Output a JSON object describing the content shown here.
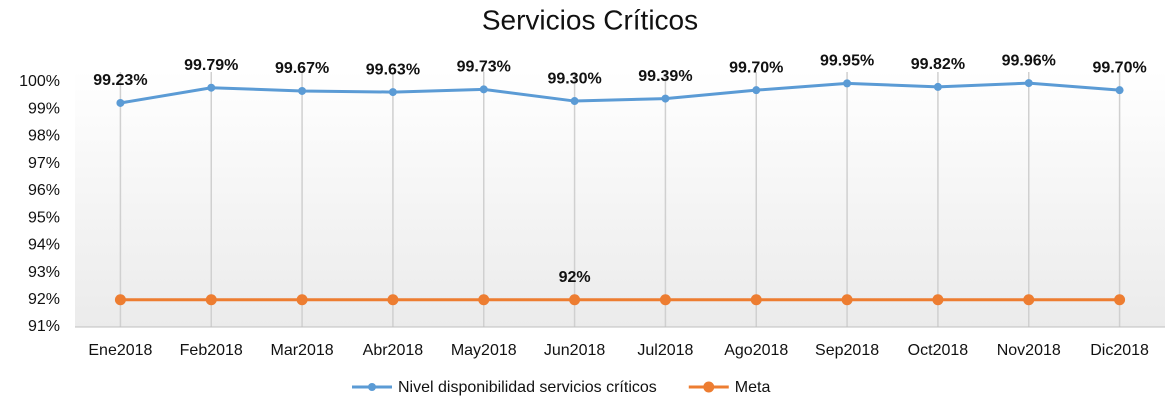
{
  "chart_data": {
    "type": "line",
    "title": "Servicios  Críticos",
    "categories": [
      "Ene2018",
      "Feb2018",
      "Mar2018",
      "Abr2018",
      "May2018",
      "Jun2018",
      "Jul2018",
      "Ago2018",
      "Sep2018",
      "Oct2018",
      "Nov2018",
      "Dic2018"
    ],
    "series": [
      {
        "name": "Nivel disponibilidad servicios críticos",
        "color": "#5b9bd5",
        "values": [
          99.23,
          99.79,
          99.67,
          99.63,
          99.73,
          99.3,
          99.39,
          99.7,
          99.95,
          99.82,
          99.96,
          99.7
        ],
        "value_labels": [
          "99.23%",
          "99.79%",
          "99.67%",
          "99.63%",
          "99.73%",
          "99.30%",
          "99.39%",
          "99.70%",
          "99.95%",
          "99.82%",
          "99.96%",
          "99.70%"
        ]
      },
      {
        "name": "Meta",
        "color": "#ed7d31",
        "values": [
          92,
          92,
          92,
          92,
          92,
          92,
          92,
          92,
          92,
          92,
          92,
          92
        ],
        "value_labels": [
          null,
          null,
          null,
          null,
          null,
          "92%",
          null,
          null,
          null,
          null,
          null,
          null
        ]
      }
    ],
    "ylim": [
      91,
      100
    ],
    "yticks": [
      {
        "value": 91,
        "label": "91%"
      },
      {
        "value": 92,
        "label": "92%"
      },
      {
        "value": 93,
        "label": "93%"
      },
      {
        "value": 94,
        "label": "94%"
      },
      {
        "value": 95,
        "label": "95%"
      },
      {
        "value": 96,
        "label": "96%"
      },
      {
        "value": 97,
        "label": "97%"
      },
      {
        "value": 98,
        "label": "98%"
      },
      {
        "value": 99,
        "label": "99%"
      },
      {
        "value": 100,
        "label": "100%"
      }
    ],
    "legend": "bottom"
  }
}
